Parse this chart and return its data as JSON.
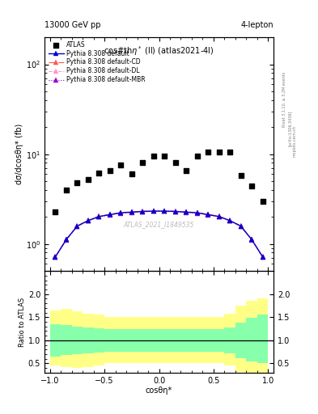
{
  "header_left": "13000 GeV pp",
  "header_right": "4-lepton",
  "plot_title": "cos#thη* (ll) (atlas2021-4l)",
  "ylabel_main": "dσ/dcosθη* (fb)",
  "ylabel_ratio": "Ratio to ATLAS",
  "xlabel": "cosθη*",
  "watermark": "ATLAS_2021_I1849535",
  "rivet_text": "Rivet 3.1.10, ≥ 3.2M events",
  "arxiv_text": "[arXiv:1306.3436]",
  "mcplots_text": "mcplots.cern.ch",
  "x_edges": [
    -1.0,
    -0.9,
    -0.8,
    -0.7,
    -0.6,
    -0.5,
    -0.4,
    -0.3,
    -0.2,
    -0.1,
    0.0,
    0.1,
    0.2,
    0.3,
    0.4,
    0.5,
    0.6,
    0.7,
    0.8,
    0.9,
    1.0
  ],
  "atlas_data": [
    2.3,
    4.0,
    4.8,
    5.2,
    6.1,
    6.5,
    7.5,
    6.0,
    8.0,
    9.5,
    9.5,
    8.0,
    6.5,
    9.5,
    10.5,
    10.5,
    10.5,
    5.8,
    4.4,
    3.0
  ],
  "pythia_default": [
    0.72,
    1.12,
    1.58,
    1.82,
    2.02,
    2.12,
    2.22,
    2.26,
    2.3,
    2.32,
    2.32,
    2.3,
    2.26,
    2.22,
    2.12,
    2.02,
    1.82,
    1.58,
    1.12,
    0.72
  ],
  "ratio_green_upper": [
    1.35,
    1.33,
    1.3,
    1.28,
    1.26,
    1.25,
    1.25,
    1.25,
    1.25,
    1.25,
    1.25,
    1.25,
    1.25,
    1.25,
    1.25,
    1.25,
    1.28,
    1.38,
    1.48,
    1.55
  ],
  "ratio_green_lower": [
    0.65,
    0.68,
    0.7,
    0.72,
    0.74,
    0.75,
    0.75,
    0.75,
    0.75,
    0.75,
    0.75,
    0.75,
    0.75,
    0.75,
    0.75,
    0.75,
    0.72,
    0.62,
    0.55,
    0.5
  ],
  "ratio_yellow_upper": [
    1.65,
    1.68,
    1.62,
    1.58,
    1.55,
    1.5,
    1.5,
    1.5,
    1.5,
    1.5,
    1.5,
    1.5,
    1.5,
    1.5,
    1.5,
    1.5,
    1.58,
    1.75,
    1.85,
    1.9
  ],
  "ratio_yellow_lower": [
    0.45,
    0.42,
    0.4,
    0.42,
    0.45,
    0.5,
    0.5,
    0.5,
    0.5,
    0.5,
    0.5,
    0.5,
    0.5,
    0.5,
    0.5,
    0.5,
    0.45,
    0.32,
    0.28,
    0.25
  ],
  "color_default": "#0000cc",
  "color_cd": "#ff5555",
  "color_dl": "#ff99cc",
  "color_mbr": "#9900cc",
  "ylim_main_log": [
    0.5,
    200
  ],
  "ylim_ratio": [
    0.3,
    2.5
  ],
  "xlim": [
    -1.05,
    1.05
  ]
}
